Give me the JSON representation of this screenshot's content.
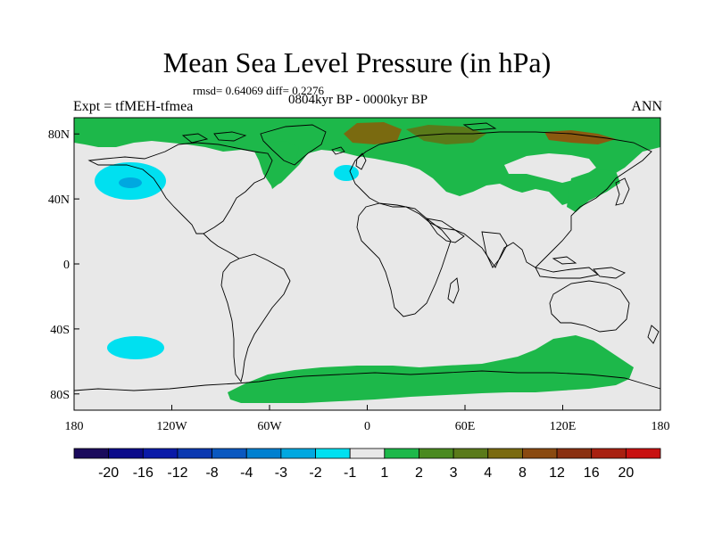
{
  "title": "Mean Sea Level Pressure (in hPa)",
  "stats": "rmsd= 0.64069 diff= 0.2276",
  "period": "0804kyr BP - 0000kyr BP",
  "experiment": "Expt = tfMEH-tfmea",
  "season": "ANN",
  "colors": {
    "background": "#e8e8e8",
    "coast": "#000000",
    "pos1": "#1db84a",
    "pos2": "#5a7a1a",
    "pos3": "#7a6a10",
    "neg1": "#00e0f0",
    "neg2": "#00a8e0"
  },
  "chart_data": {
    "type": "map",
    "xlim": [
      -180,
      180
    ],
    "ylim": [
      -90,
      90
    ],
    "lon_ticks": [
      {
        "value": -180,
        "label": "180"
      },
      {
        "value": -120,
        "label": "120W"
      },
      {
        "value": -60,
        "label": "60W"
      },
      {
        "value": 0,
        "label": "0"
      },
      {
        "value": 60,
        "label": "60E"
      },
      {
        "value": 120,
        "label": "120E"
      },
      {
        "value": 180,
        "label": "180"
      }
    ],
    "lat_ticks": [
      {
        "value": 80,
        "label": "80N"
      },
      {
        "value": 40,
        "label": "40N"
      },
      {
        "value": 0,
        "label": "0"
      },
      {
        "value": -40,
        "label": "40S"
      },
      {
        "value": -80,
        "label": "80S"
      }
    ],
    "colorbar": {
      "colors": [
        "#1a0a5c",
        "#0b0a8a",
        "#0a1aa8",
        "#0a38b0",
        "#0a58c0",
        "#0080d0",
        "#00a8e0",
        "#00e0f0",
        "#e8e8e8",
        "#1db84a",
        "#4a8a20",
        "#5a7a1a",
        "#7a6a10",
        "#8a4a10",
        "#8a3010",
        "#a82010",
        "#c81010"
      ],
      "labels": [
        "-20",
        "-16",
        "-12",
        "-8",
        "-4",
        "-3",
        "-2",
        "-1",
        "1",
        "2",
        "3",
        "4",
        "8",
        "12",
        "16",
        "20"
      ]
    }
  }
}
